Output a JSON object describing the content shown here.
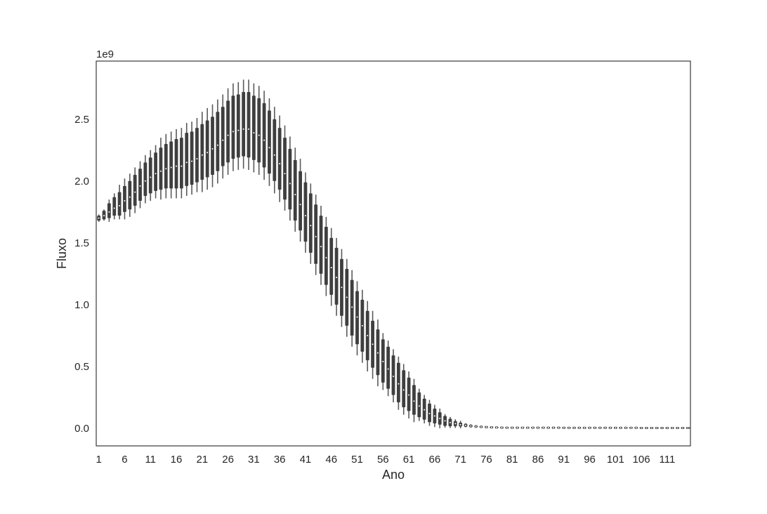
{
  "chart_data": {
    "type": "box",
    "title": "",
    "xlabel": "Ano",
    "ylabel": "Fluxo",
    "y_offset_text": "1e9",
    "y_multiplier": 1000000000,
    "ylim": [
      -0.142,
      2.97
    ],
    "yticks": [
      0.0,
      0.5,
      1.0,
      1.5,
      2.0,
      2.5
    ],
    "ytick_labels": [
      "0.0",
      "0.5",
      "1.0",
      "1.5",
      "2.0",
      "2.5"
    ],
    "xticks": [
      1,
      6,
      11,
      16,
      21,
      26,
      31,
      36,
      41,
      46,
      51,
      56,
      61,
      66,
      71,
      76,
      81,
      86,
      91,
      96,
      101,
      106,
      111
    ],
    "xtick_labels": [
      "1",
      "6",
      "11",
      "16",
      "21",
      "26",
      "31",
      "36",
      "41",
      "46",
      "51",
      "56",
      "61",
      "66",
      "71",
      "76",
      "81",
      "86",
      "91",
      "96",
      "101",
      "106",
      "111"
    ],
    "grid": false,
    "colors": {
      "box": "#3f3f3f",
      "whisker": "#5a5a5a",
      "median": "#ffffff",
      "frame": "#262626"
    },
    "x_start": 1,
    "median": [
      1.7,
      1.72,
      1.75,
      1.78,
      1.8,
      1.84,
      1.87,
      1.91,
      1.96,
      2.0,
      2.03,
      2.06,
      2.08,
      2.1,
      2.11,
      2.12,
      2.12,
      2.15,
      2.16,
      2.18,
      2.21,
      2.23,
      2.26,
      2.29,
      2.33,
      2.37,
      2.4,
      2.41,
      2.42,
      2.42,
      2.39,
      2.37,
      2.33,
      2.27,
      2.21,
      2.14,
      2.06,
      1.98,
      1.89,
      1.81,
      1.72,
      1.64,
      1.55,
      1.47,
      1.38,
      1.3,
      1.22,
      1.14,
      1.06,
      0.98,
      0.9,
      0.83,
      0.75,
      0.68,
      0.61,
      0.54,
      0.48,
      0.42,
      0.36,
      0.31,
      0.27,
      0.22,
      0.18,
      0.15,
      0.12,
      0.1,
      0.08,
      0.06,
      0.047,
      0.038,
      0.03,
      0.024,
      0.019,
      0.015,
      0.012,
      0.01,
      0.008,
      0.007,
      0.006,
      0.005,
      0.005,
      0.005,
      0.005,
      0.005,
      0.005,
      0.005,
      0.005,
      0.005,
      0.005,
      0.005,
      0.004,
      0.004,
      0.004,
      0.004,
      0.004,
      0.004,
      0.004,
      0.004,
      0.004,
      0.004,
      0.004,
      0.004,
      0.004,
      0.004,
      0.004,
      0.003,
      0.003,
      0.003,
      0.003,
      0.003,
      0.003,
      0.003,
      0.003,
      0.003,
      0.003
    ],
    "q1": [
      1.68,
      1.69,
      1.7,
      1.72,
      1.72,
      1.75,
      1.77,
      1.8,
      1.84,
      1.88,
      1.9,
      1.92,
      1.93,
      1.94,
      1.94,
      1.94,
      1.94,
      1.96,
      1.97,
      1.99,
      2.01,
      2.03,
      2.05,
      2.08,
      2.12,
      2.15,
      2.18,
      2.19,
      2.2,
      2.19,
      2.17,
      2.15,
      2.11,
      2.06,
      2.0,
      1.93,
      1.85,
      1.77,
      1.68,
      1.6,
      1.51,
      1.42,
      1.33,
      1.25,
      1.16,
      1.08,
      1.0,
      0.91,
      0.83,
      0.75,
      0.68,
      0.62,
      0.55,
      0.49,
      0.43,
      0.37,
      0.32,
      0.27,
      0.21,
      0.17,
      0.14,
      0.11,
      0.09,
      0.07,
      0.05,
      0.04,
      0.03,
      0.02,
      0.017,
      0.018,
      0.015,
      0.012,
      0.009,
      0.007,
      0.006,
      0.005,
      0.004,
      0.003,
      0.003,
      0.003,
      0.003,
      0.003,
      0.003,
      0.003,
      0.003,
      0.003,
      0.003,
      0.003,
      0.003,
      0.003,
      0.002,
      0.002,
      0.002,
      0.002,
      0.002,
      0.002,
      0.002,
      0.002,
      0.002,
      0.002,
      0.002,
      0.002,
      0.002,
      0.002,
      0.002,
      0.001,
      0.001,
      0.001,
      0.001,
      0.001,
      0.001,
      0.001,
      0.001,
      0.001,
      0.001
    ],
    "q3": [
      1.72,
      1.76,
      1.82,
      1.87,
      1.91,
      1.96,
      2.0,
      2.05,
      2.1,
      2.15,
      2.19,
      2.23,
      2.27,
      2.3,
      2.32,
      2.34,
      2.35,
      2.39,
      2.4,
      2.43,
      2.46,
      2.49,
      2.52,
      2.56,
      2.6,
      2.65,
      2.69,
      2.7,
      2.72,
      2.72,
      2.69,
      2.67,
      2.63,
      2.57,
      2.5,
      2.43,
      2.35,
      2.26,
      2.17,
      2.08,
      1.99,
      1.9,
      1.81,
      1.72,
      1.63,
      1.54,
      1.46,
      1.37,
      1.29,
      1.2,
      1.11,
      1.04,
      0.95,
      0.87,
      0.8,
      0.72,
      0.66,
      0.59,
      0.53,
      0.47,
      0.41,
      0.35,
      0.29,
      0.24,
      0.2,
      0.16,
      0.13,
      0.1,
      0.077,
      0.058,
      0.046,
      0.037,
      0.029,
      0.023,
      0.018,
      0.015,
      0.012,
      0.011,
      0.009,
      0.007,
      0.007,
      0.007,
      0.007,
      0.007,
      0.007,
      0.007,
      0.007,
      0.007,
      0.007,
      0.007,
      0.006,
      0.006,
      0.006,
      0.006,
      0.006,
      0.006,
      0.006,
      0.006,
      0.006,
      0.006,
      0.006,
      0.006,
      0.006,
      0.006,
      0.006,
      0.005,
      0.005,
      0.005,
      0.005,
      0.005,
      0.005,
      0.005,
      0.005,
      0.005,
      0.005
    ],
    "whislo": [
      1.67,
      1.68,
      1.67,
      1.69,
      1.69,
      1.69,
      1.71,
      1.74,
      1.78,
      1.82,
      1.84,
      1.86,
      1.85,
      1.86,
      1.86,
      1.86,
      1.86,
      1.88,
      1.89,
      1.91,
      1.91,
      1.93,
      1.95,
      1.98,
      2.02,
      2.05,
      2.08,
      2.09,
      2.1,
      2.09,
      2.07,
      2.05,
      2.01,
      1.96,
      1.9,
      1.83,
      1.76,
      1.68,
      1.59,
      1.51,
      1.42,
      1.33,
      1.24,
      1.16,
      1.07,
      0.99,
      0.91,
      0.82,
      0.74,
      0.66,
      0.59,
      0.53,
      0.46,
      0.4,
      0.34,
      0.31,
      0.26,
      0.21,
      0.15,
      0.11,
      0.08,
      0.05,
      0.06,
      0.04,
      0.02,
      0.01,
      0.0,
      0.005,
      0.002,
      0.003,
      0.0,
      0.008,
      0.005,
      0.003,
      0.002,
      0.001,
      0.001,
      0.001,
      0.001,
      0.002,
      0.002,
      0.002,
      0.002,
      0.002,
      0.002,
      0.002,
      0.002,
      0.002,
      0.002,
      0.002,
      0.001,
      0.001,
      0.001,
      0.001,
      0.001,
      0.001,
      0.001,
      0.001,
      0.001,
      0.001,
      0.001,
      0.001,
      0.001,
      0.001,
      0.001,
      0.0,
      0.0,
      0.0,
      0.0,
      0.0,
      0.0,
      0.0,
      0.0,
      0.0,
      0.0
    ],
    "whishi": [
      1.73,
      1.77,
      1.85,
      1.9,
      1.97,
      2.02,
      2.06,
      2.11,
      2.16,
      2.21,
      2.25,
      2.29,
      2.35,
      2.38,
      2.4,
      2.42,
      2.43,
      2.47,
      2.48,
      2.51,
      2.56,
      2.59,
      2.62,
      2.66,
      2.7,
      2.75,
      2.79,
      2.8,
      2.82,
      2.82,
      2.79,
      2.77,
      2.73,
      2.67,
      2.6,
      2.53,
      2.45,
      2.36,
      2.27,
      2.18,
      2.07,
      1.98,
      1.89,
      1.8,
      1.71,
      1.62,
      1.54,
      1.45,
      1.37,
      1.28,
      1.19,
      1.12,
      1.03,
      0.95,
      0.88,
      0.77,
      0.71,
      0.64,
      0.58,
      0.52,
      0.46,
      0.4,
      0.32,
      0.27,
      0.23,
      0.19,
      0.16,
      0.115,
      0.092,
      0.073,
      0.061,
      0.041,
      0.033,
      0.027,
      0.022,
      0.019,
      0.016,
      0.014,
      0.012,
      0.009,
      0.009,
      0.009,
      0.009,
      0.009,
      0.009,
      0.009,
      0.009,
      0.009,
      0.009,
      0.009,
      0.008,
      0.008,
      0.008,
      0.008,
      0.008,
      0.008,
      0.008,
      0.008,
      0.008,
      0.008,
      0.008,
      0.008,
      0.008,
      0.008,
      0.008,
      0.007,
      0.007,
      0.007,
      0.007,
      0.007,
      0.007,
      0.007,
      0.007,
      0.007,
      0.007
    ]
  }
}
